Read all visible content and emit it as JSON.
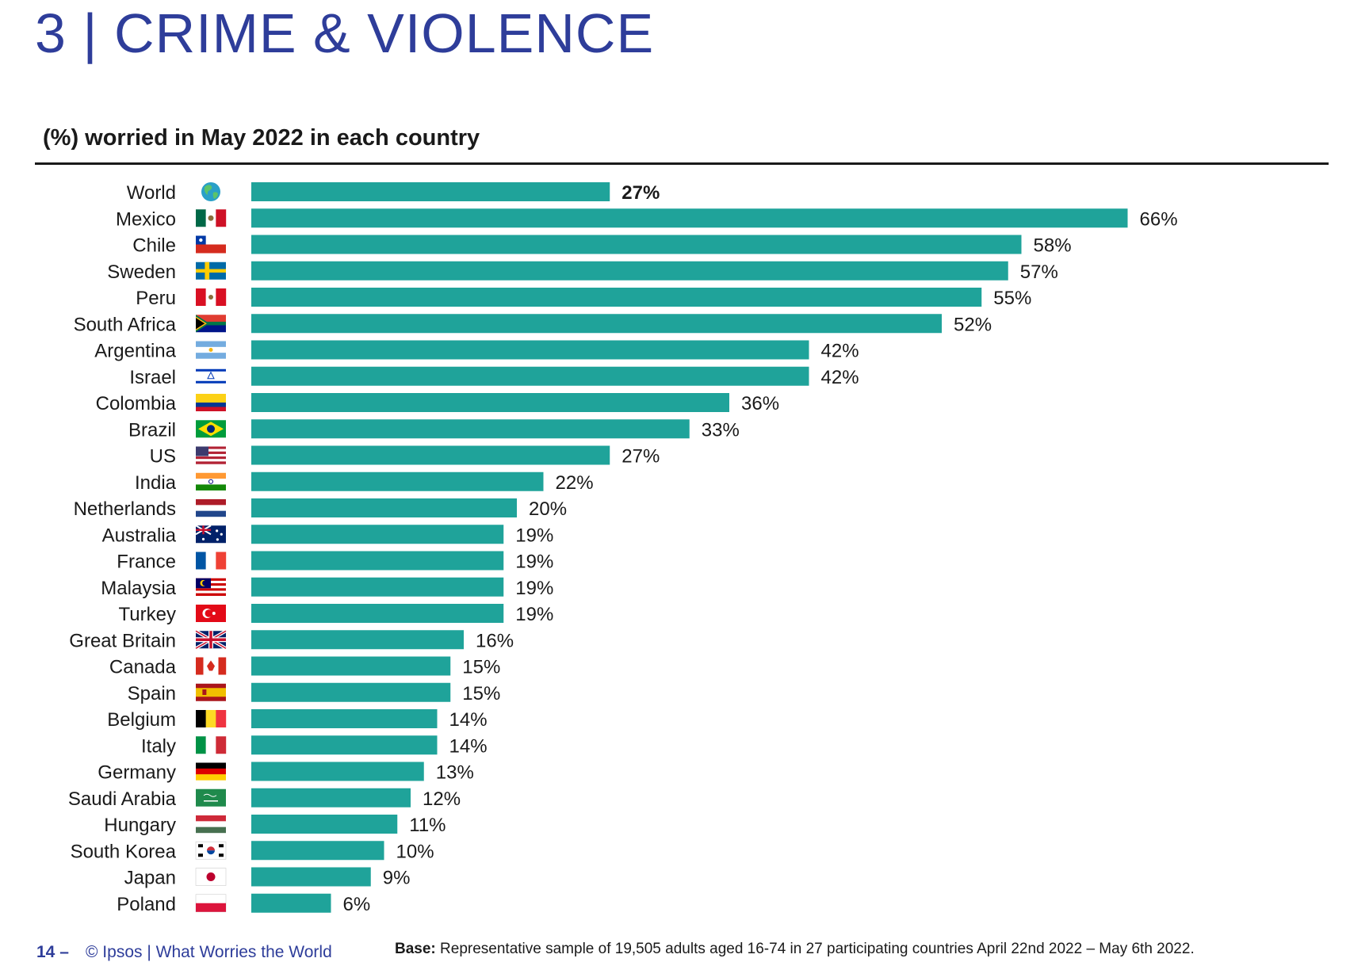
{
  "header": {
    "title": "3 | CRIME & VIOLENCE",
    "subtitle": "(%) worried in May 2022 in each country"
  },
  "chart_data": {
    "type": "bar",
    "orientation": "horizontal",
    "categories": [
      "World",
      "Mexico",
      "Chile",
      "Sweden",
      "Peru",
      "South Africa",
      "Argentina",
      "Israel",
      "Colombia",
      "Brazil",
      "US",
      "India",
      "Netherlands",
      "Australia",
      "France",
      "Malaysia",
      "Turkey",
      "Great Britain",
      "Canada",
      "Spain",
      "Belgium",
      "Italy",
      "Germany",
      "Saudi Arabia",
      "Hungary",
      "South Korea",
      "Japan",
      "Poland"
    ],
    "values": [
      27,
      66,
      58,
      57,
      55,
      52,
      42,
      42,
      36,
      33,
      27,
      22,
      20,
      19,
      19,
      19,
      19,
      16,
      15,
      15,
      14,
      14,
      13,
      12,
      11,
      10,
      9,
      6
    ],
    "value_labels": [
      "27%",
      "66%",
      "58%",
      "57%",
      "55%",
      "52%",
      "42%",
      "42%",
      "36%",
      "33%",
      "27%",
      "22%",
      "20%",
      "19%",
      "19%",
      "19%",
      "19%",
      "16%",
      "15%",
      "15%",
      "14%",
      "14%",
      "13%",
      "12%",
      "11%",
      "10%",
      "9%",
      "6%"
    ],
    "flags": [
      "globe-icon",
      "mexico-flag-icon",
      "chile-flag-icon",
      "sweden-flag-icon",
      "peru-flag-icon",
      "south-africa-flag-icon",
      "argentina-flag-icon",
      "israel-flag-icon",
      "colombia-flag-icon",
      "brazil-flag-icon",
      "us-flag-icon",
      "india-flag-icon",
      "netherlands-flag-icon",
      "australia-flag-icon",
      "france-flag-icon",
      "malaysia-flag-icon",
      "turkey-flag-icon",
      "great-britain-flag-icon",
      "canada-flag-icon",
      "spain-flag-icon",
      "belgium-flag-icon",
      "italy-flag-icon",
      "germany-flag-icon",
      "saudi-arabia-flag-icon",
      "hungary-flag-icon",
      "south-korea-flag-icon",
      "japan-flag-icon",
      "poland-flag-icon"
    ],
    "highlight_category": "World",
    "bar_color": "#1fa39a",
    "xlim": [
      0,
      66
    ],
    "grid": false,
    "legend": "none"
  },
  "footer": {
    "page_number": "14 –",
    "source": "© Ipsos | What Worries the World",
    "base_label": "Base:",
    "base_text": " Representative sample of 19,505 adults aged 16-74 in 27 participating countries April 22nd 2022 – May 6th 2022."
  },
  "colors": {
    "title": "#2e3d9a",
    "bar": "#1fa39a",
    "text": "#1a1a1a"
  }
}
